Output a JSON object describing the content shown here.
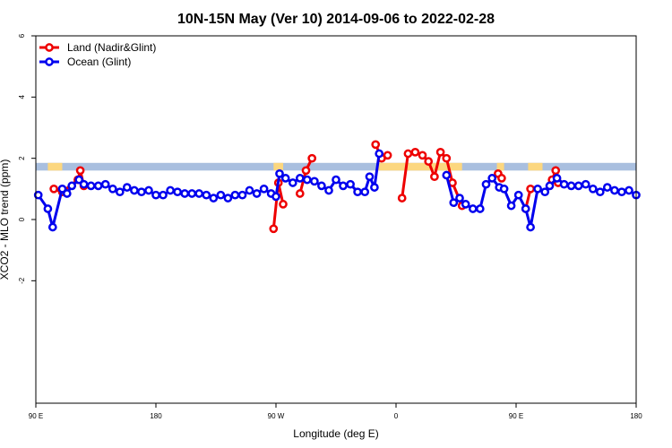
{
  "chart_data": {
    "type": "line",
    "title": "10N-15N May (Ver 10)   2014-09-06 to 2022-02-28",
    "xlabel": "Longitude (deg E)",
    "ylabel": "XCO2 - MLO trend (ppm)",
    "xlim": [
      0,
      500
    ],
    "ylim": [
      -6,
      6
    ],
    "x_ticks": [
      {
        "value": 0,
        "label": "90 E"
      },
      {
        "value": 100,
        "label": "180"
      },
      {
        "value": 200,
        "label": "90 W"
      },
      {
        "value": 300,
        "label": "0"
      },
      {
        "value": 400,
        "label": "90 E"
      },
      {
        "value": 500,
        "label": "180"
      }
    ],
    "y_ticks": [
      {
        "value": -2,
        "label": "-2"
      },
      {
        "value": 0,
        "label": "0"
      },
      {
        "value": 2,
        "label": "2"
      },
      {
        "value": 4,
        "label": "4"
      },
      {
        "value": 6,
        "label": "6"
      }
    ],
    "background_band": {
      "ymin": 1.6,
      "ymax": 1.85,
      "color": "#a9bfdf",
      "highlight_color": "#fcd77f",
      "highlight_ranges": [
        [
          10,
          22
        ],
        [
          198,
          206
        ],
        [
          285,
          355
        ],
        [
          384,
          390
        ],
        [
          410,
          422
        ]
      ]
    },
    "legend_position": "top-left",
    "series": [
      {
        "name": "Land (Nadir&Glint)",
        "color": "#ee0000",
        "segments": [
          [
            [
              15,
              1.0
            ],
            [
              22,
              0.9
            ],
            [
              35,
              1.3
            ],
            [
              37,
              1.6
            ],
            [
              40,
              1.1
            ]
          ],
          [
            [
              198,
              -0.3
            ],
            [
              202,
              1.2
            ],
            [
              206,
              0.5
            ]
          ],
          [
            [
              220,
              0.85
            ],
            [
              225,
              1.6
            ],
            [
              230,
              2.0
            ]
          ],
          [
            [
              283,
              2.45
            ],
            [
              288,
              2.0
            ],
            [
              293,
              2.1
            ]
          ],
          [
            [
              305,
              0.7
            ],
            [
              310,
              2.15
            ],
            [
              316,
              2.2
            ],
            [
              322,
              2.1
            ],
            [
              327,
              1.9
            ],
            [
              332,
              1.4
            ],
            [
              337,
              2.2
            ],
            [
              342,
              2.0
            ],
            [
              347,
              1.2
            ],
            [
              355,
              0.45
            ]
          ],
          [
            [
              385,
              1.5
            ],
            [
              388,
              1.35
            ]
          ],
          [
            [
              408,
              0.35
            ],
            [
              412,
              1.0
            ]
          ],
          [
            [
              430,
              1.3
            ],
            [
              433,
              1.6
            ],
            [
              435,
              1.2
            ]
          ]
        ]
      },
      {
        "name": "Ocean (Glint)",
        "color": "#0000ee",
        "segments": [
          [
            [
              2,
              0.8
            ],
            [
              10,
              0.35
            ],
            [
              14,
              -0.25
            ],
            [
              22,
              1.0
            ],
            [
              26,
              0.85
            ],
            [
              30,
              1.1
            ],
            [
              36,
              1.3
            ],
            [
              40,
              1.15
            ],
            [
              46,
              1.1
            ],
            [
              52,
              1.1
            ],
            [
              58,
              1.15
            ],
            [
              64,
              1.0
            ],
            [
              70,
              0.9
            ],
            [
              76,
              1.05
            ],
            [
              82,
              0.95
            ],
            [
              88,
              0.9
            ],
            [
              94,
              0.95
            ],
            [
              100,
              0.8
            ],
            [
              106,
              0.8
            ],
            [
              112,
              0.95
            ],
            [
              118,
              0.9
            ],
            [
              124,
              0.85
            ],
            [
              130,
              0.85
            ],
            [
              136,
              0.85
            ],
            [
              142,
              0.8
            ],
            [
              148,
              0.7
            ],
            [
              154,
              0.8
            ],
            [
              160,
              0.7
            ],
            [
              166,
              0.8
            ],
            [
              172,
              0.8
            ],
            [
              178,
              0.95
            ],
            [
              184,
              0.85
            ],
            [
              190,
              1.0
            ],
            [
              196,
              0.85
            ],
            [
              200,
              0.75
            ],
            [
              203,
              1.5
            ],
            [
              208,
              1.35
            ],
            [
              214,
              1.2
            ],
            [
              220,
              1.35
            ],
            [
              226,
              1.3
            ],
            [
              232,
              1.25
            ],
            [
              238,
              1.1
            ],
            [
              244,
              0.95
            ],
            [
              250,
              1.3
            ],
            [
              256,
              1.1
            ],
            [
              262,
              1.15
            ],
            [
              268,
              0.9
            ],
            [
              274,
              0.9
            ],
            [
              278,
              1.4
            ],
            [
              282,
              1.05
            ],
            [
              286,
              2.15
            ]
          ],
          [
            [
              342,
              1.45
            ],
            [
              348,
              0.55
            ],
            [
              353,
              0.7
            ],
            [
              358,
              0.5
            ],
            [
              364,
              0.35
            ],
            [
              370,
              0.35
            ],
            [
              375,
              1.15
            ],
            [
              380,
              1.35
            ],
            [
              386,
              1.05
            ],
            [
              390,
              1.0
            ],
            [
              396,
              0.45
            ],
            [
              402,
              0.8
            ],
            [
              408,
              0.35
            ],
            [
              412,
              -0.25
            ],
            [
              418,
              1.0
            ],
            [
              424,
              0.9
            ],
            [
              428,
              1.1
            ],
            [
              434,
              1.35
            ],
            [
              440,
              1.15
            ],
            [
              446,
              1.1
            ],
            [
              452,
              1.1
            ],
            [
              458,
              1.15
            ],
            [
              464,
              1.0
            ],
            [
              470,
              0.9
            ],
            [
              476,
              1.05
            ],
            [
              482,
              0.95
            ],
            [
              488,
              0.9
            ],
            [
              494,
              0.95
            ],
            [
              500,
              0.8
            ]
          ]
        ]
      }
    ]
  }
}
